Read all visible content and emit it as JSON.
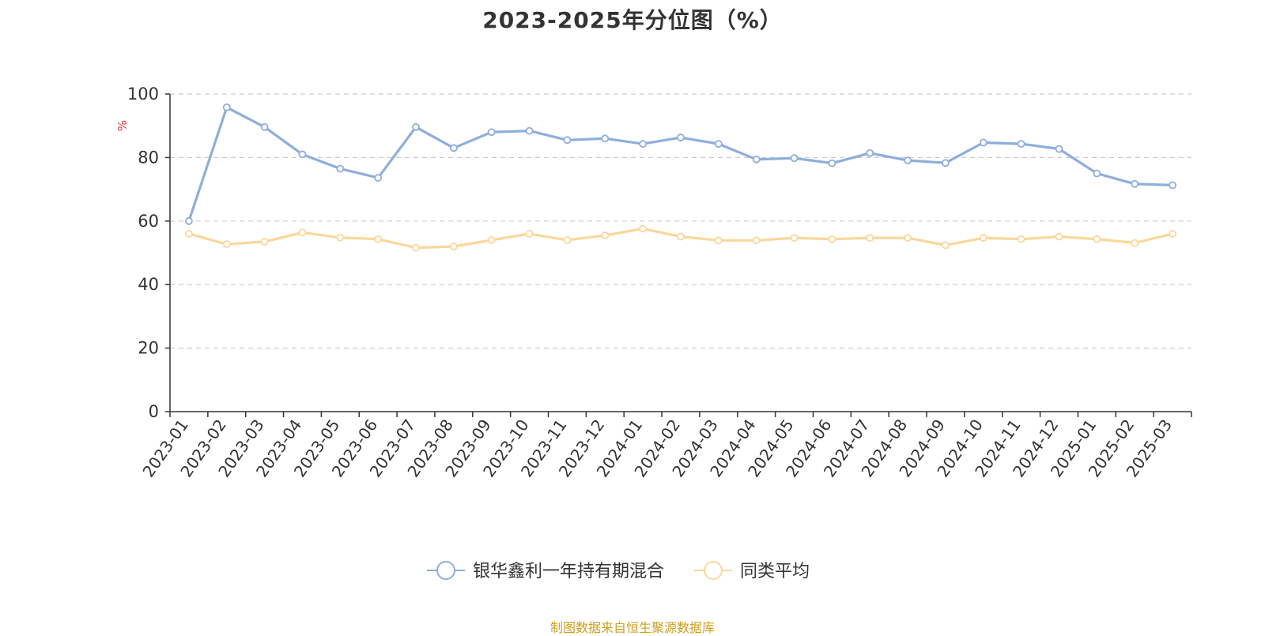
{
  "chart_data": {
    "type": "line",
    "title": "2023-2025年分位图（%）",
    "ylabel": "%",
    "xlabel": "",
    "ylim": [
      0,
      100
    ],
    "yticks": [
      0,
      20,
      40,
      60,
      80,
      100
    ],
    "grid": "horizontal-dashed",
    "legend_position": "bottom-center",
    "x": [
      "2023-01",
      "2023-02",
      "2023-03",
      "2023-04",
      "2023-05",
      "2023-06",
      "2023-07",
      "2023-08",
      "2023-09",
      "2023-10",
      "2023-11",
      "2023-12",
      "2024-01",
      "2024-02",
      "2024-03",
      "2024-04",
      "2024-05",
      "2024-06",
      "2024-07",
      "2024-08",
      "2024-09",
      "2024-10",
      "2024-11",
      "2024-12",
      "2025-01",
      "2025-02",
      "2025-03"
    ],
    "series": [
      {
        "name": "银华鑫利一年持有期混合",
        "color": "#8eaedb",
        "values": [
          60.0,
          95.8,
          89.6,
          81.0,
          76.5,
          73.6,
          89.6,
          83.0,
          88.0,
          88.4,
          85.5,
          86.0,
          84.3,
          86.3,
          84.3,
          79.4,
          79.8,
          78.2,
          81.4,
          79.1,
          78.3,
          84.7,
          84.3,
          82.7,
          75.0,
          71.7,
          71.3
        ]
      },
      {
        "name": "同类平均",
        "color": "#fad79b",
        "values": [
          56.0,
          52.7,
          53.5,
          56.4,
          54.8,
          54.3,
          51.6,
          52.0,
          54.0,
          56.0,
          54.0,
          55.5,
          57.6,
          55.1,
          53.9,
          53.9,
          54.7,
          54.3,
          54.7,
          54.7,
          52.4,
          54.7,
          54.3,
          55.1,
          54.3,
          53.1,
          56.0
        ]
      }
    ]
  },
  "source_note": "制图数据来自恒生聚源数据库"
}
